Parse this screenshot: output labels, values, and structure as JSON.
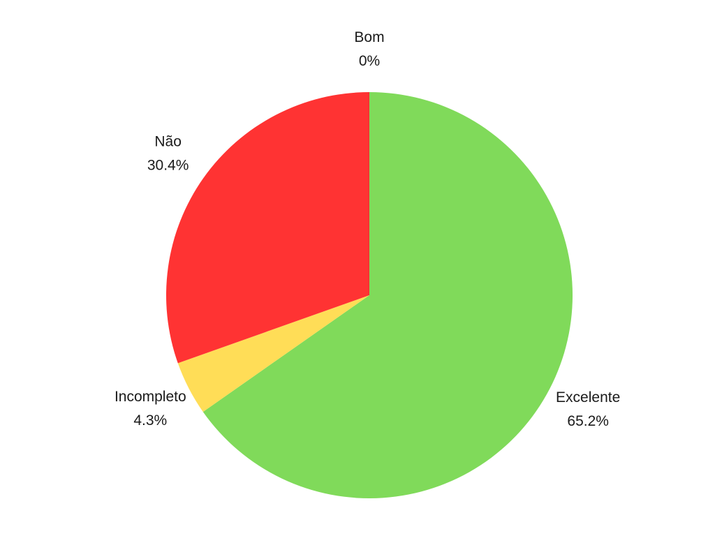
{
  "chart_data": {
    "type": "pie",
    "slices": [
      {
        "label": "Excelente",
        "value": 65.2,
        "value_label": "65.2%",
        "color": "#80da5a"
      },
      {
        "label": "Incompleto",
        "value": 4.3,
        "value_label": "4.3%",
        "color": "#ffdd57"
      },
      {
        "label": "Não",
        "value": 30.4,
        "value_label": "30.4%",
        "color": "#ff3333"
      },
      {
        "label": "Bom",
        "value": 0,
        "value_label": "0%",
        "color": "#4a90e2"
      }
    ],
    "start": "top",
    "direction": "clockwise"
  }
}
